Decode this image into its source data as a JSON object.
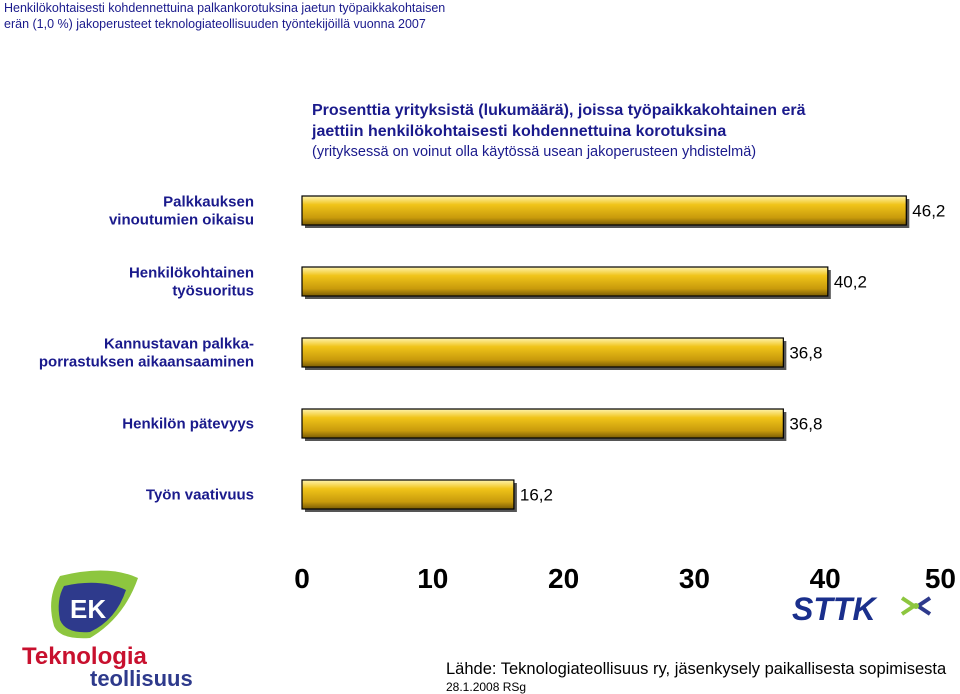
{
  "header": {
    "line1": "Henkilökohtaisesti kohdennettuina palkankorotuksina jaetun työpaikkakohtaisen",
    "line2": "erän (1,0 %) jakoperusteet teknologiateollisuuden työntekijöillä vuonna 2007"
  },
  "chart_data": {
    "type": "bar",
    "orientation": "horizontal",
    "title_line1": "Prosenttia yrityksistä (lukumäärä), joissa työpaikkakohtainen erä",
    "title_line2": "jaettiin henkilökohtaisesti kohdennettuina korotuksina",
    "subtitle": "(yrityksessä on voinut olla käytössä usean jakoperusteen yhdistelmä)",
    "categories": [
      [
        "Palkkauksen",
        "vinoutumien oikaisu"
      ],
      [
        "Henkilökohtainen",
        "työsuoritus"
      ],
      [
        "Kannustavan palkka-",
        "porrastuksen aikaansaaminen"
      ],
      [
        "Henkilön pätevyys"
      ],
      [
        "Työn vaativuus"
      ]
    ],
    "values": [
      46.2,
      40.2,
      36.8,
      36.8,
      16.2
    ],
    "value_labels": [
      "46,2",
      "40,2",
      "36,8",
      "36,8",
      "16,2"
    ],
    "xlim": [
      0,
      50
    ],
    "xticks": [
      "0",
      "10",
      "20",
      "30",
      "40",
      "50"
    ],
    "bar_color": "#f0c419",
    "bar_color_dark": "#9a7a0a",
    "grid": false,
    "legend": "none"
  },
  "source": "Lähde: Teknologiateollisuus ry, jäsenkysely paikallisesta sopimisesta",
  "date": "28.1.2008 RSg",
  "logos": {
    "ek_text": "EK",
    "teknologia_line1": "Teknologia",
    "teknologia_line2": "teollisuus",
    "sttk_text": "STTK",
    "ek_blue": "#2e3a8c",
    "ek_green": "#8dc63f",
    "tek_red": "#c8102e",
    "tek_blue": "#2e3a8c"
  }
}
